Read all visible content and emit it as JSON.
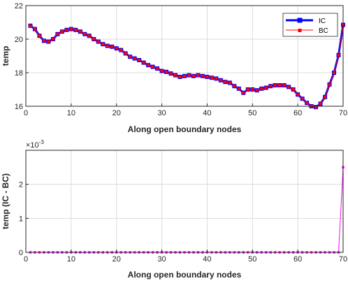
{
  "chart_data": [
    {
      "type": "line",
      "xlabel": "Along open boundary nodes",
      "ylabel": "temp",
      "xlim": [
        0,
        70
      ],
      "ylim": [
        16,
        22
      ],
      "xticks": [
        "0",
        "10",
        "20",
        "30",
        "40",
        "50",
        "60",
        "70"
      ],
      "yticks": [
        "16",
        "18",
        "20",
        "22"
      ],
      "grid": true,
      "legend": "top-right",
      "x": [
        1,
        2,
        3,
        4,
        5,
        6,
        7,
        8,
        9,
        10,
        11,
        12,
        13,
        14,
        15,
        16,
        17,
        18,
        19,
        20,
        21,
        22,
        23,
        24,
        25,
        26,
        27,
        28,
        29,
        30,
        31,
        32,
        33,
        34,
        35,
        36,
        37,
        38,
        39,
        40,
        41,
        42,
        43,
        44,
        45,
        46,
        47,
        48,
        49,
        50,
        51,
        52,
        53,
        54,
        55,
        56,
        57,
        58,
        59,
        60,
        61,
        62,
        63,
        64,
        65,
        66,
        67,
        68,
        69,
        70
      ],
      "series": [
        {
          "name": "IC",
          "color": "#0000ff",
          "values": [
            20.8,
            20.6,
            20.2,
            19.9,
            19.85,
            20.0,
            20.3,
            20.45,
            20.55,
            20.6,
            20.55,
            20.45,
            20.3,
            20.2,
            20.0,
            19.85,
            19.7,
            19.6,
            19.55,
            19.45,
            19.35,
            19.15,
            18.95,
            18.85,
            18.75,
            18.6,
            18.45,
            18.35,
            18.25,
            18.1,
            18.05,
            17.95,
            17.85,
            17.75,
            17.8,
            17.85,
            17.8,
            17.85,
            17.8,
            17.75,
            17.7,
            17.65,
            17.55,
            17.45,
            17.4,
            17.2,
            17.05,
            16.8,
            17.0,
            17.0,
            16.95,
            17.05,
            17.1,
            17.2,
            17.25,
            17.25,
            17.25,
            17.15,
            17.0,
            16.7,
            16.45,
            16.2,
            16.0,
            15.95,
            16.15,
            16.55,
            17.3,
            18.0,
            19.05,
            20.85
          ]
        },
        {
          "name": "BC",
          "color": "#ff0000",
          "values": [
            20.8,
            20.6,
            20.2,
            19.9,
            19.85,
            20.0,
            20.3,
            20.45,
            20.55,
            20.6,
            20.55,
            20.45,
            20.3,
            20.2,
            20.0,
            19.85,
            19.7,
            19.6,
            19.55,
            19.45,
            19.35,
            19.15,
            18.95,
            18.85,
            18.75,
            18.6,
            18.45,
            18.35,
            18.25,
            18.1,
            18.05,
            17.95,
            17.85,
            17.75,
            17.8,
            17.85,
            17.8,
            17.85,
            17.8,
            17.75,
            17.7,
            17.65,
            17.55,
            17.45,
            17.4,
            17.2,
            17.05,
            16.8,
            17.0,
            17.0,
            16.95,
            17.05,
            17.1,
            17.2,
            17.25,
            17.25,
            17.25,
            17.15,
            17.0,
            16.7,
            16.45,
            16.2,
            16.0,
            15.95,
            16.15,
            16.55,
            17.3,
            18.0,
            19.05,
            20.85
          ]
        }
      ]
    },
    {
      "type": "line",
      "xlabel": "Along open boundary nodes",
      "ylabel": "temp (IC - BC)",
      "exponent_label": "×10",
      "exponent_power": "-3",
      "xlim": [
        0,
        70
      ],
      "ylim": [
        0,
        3
      ],
      "xticks": [
        "0",
        "10",
        "20",
        "30",
        "40",
        "50",
        "60",
        "70"
      ],
      "yticks": [
        "0",
        "1",
        "2"
      ],
      "grid": true,
      "x": [
        1,
        2,
        3,
        4,
        5,
        6,
        7,
        8,
        9,
        10,
        11,
        12,
        13,
        14,
        15,
        16,
        17,
        18,
        19,
        20,
        21,
        22,
        23,
        24,
        25,
        26,
        27,
        28,
        29,
        30,
        31,
        32,
        33,
        34,
        35,
        36,
        37,
        38,
        39,
        40,
        41,
        42,
        43,
        44,
        45,
        46,
        47,
        48,
        49,
        50,
        51,
        52,
        53,
        54,
        55,
        56,
        57,
        58,
        59,
        60,
        61,
        62,
        63,
        64,
        65,
        66,
        67,
        68,
        69,
        70
      ],
      "series": [
        {
          "color": "#ff00ff",
          "values": [
            0,
            0,
            0,
            0,
            0,
            0,
            0,
            0,
            0,
            0,
            0,
            0,
            0,
            0,
            0,
            0,
            0,
            0,
            0,
            0,
            0,
            0,
            0,
            0,
            0,
            0,
            0,
            0,
            0,
            0,
            0,
            0,
            0,
            0,
            0,
            0,
            0,
            0,
            0,
            0,
            0,
            0,
            0,
            0,
            0,
            0,
            0,
            0,
            0,
            0,
            0,
            0,
            0,
            0,
            0,
            0,
            0,
            0,
            0,
            0,
            0,
            0,
            0,
            0,
            0,
            0,
            0,
            0,
            0,
            2.5
          ]
        }
      ]
    }
  ]
}
